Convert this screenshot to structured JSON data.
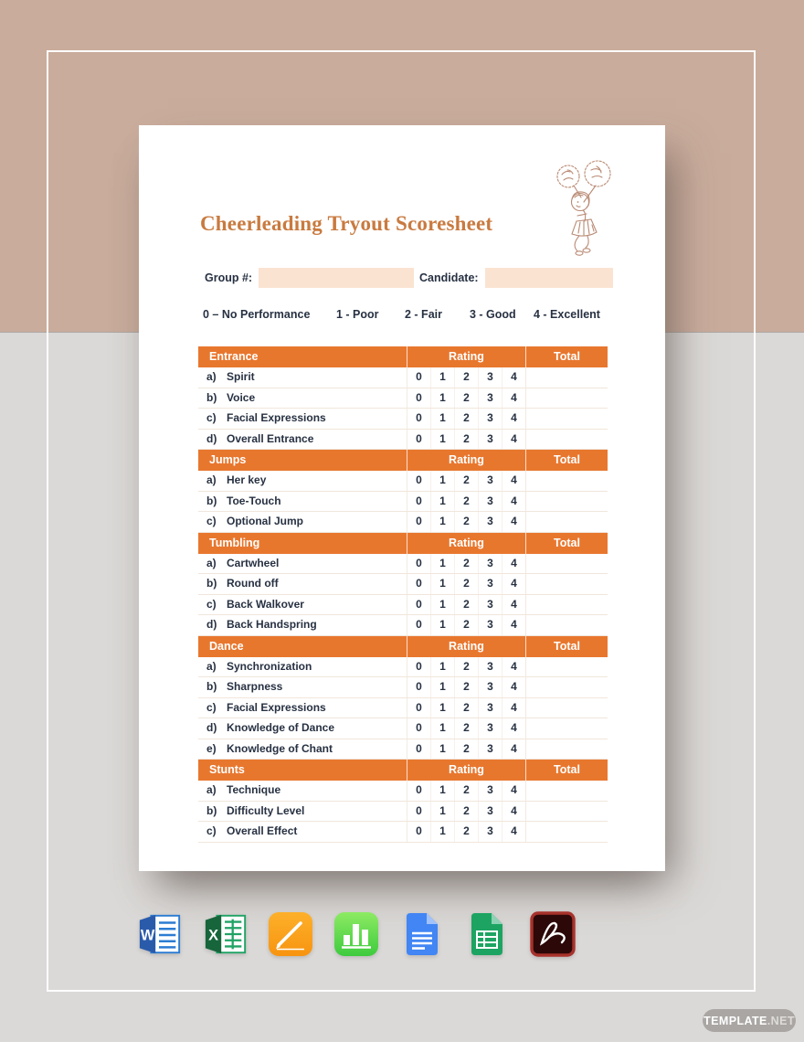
{
  "document": {
    "title": "Cheerleading Tryout Scoresheet",
    "fields": [
      {
        "label": "Group #:",
        "value": ""
      },
      {
        "label": "Candidate:",
        "value": ""
      }
    ],
    "legend": [
      "0 – No Performance",
      "1 - Poor",
      "2 - Fair",
      "3 - Good",
      "4 - Excellent"
    ],
    "table": {
      "rating_header": "Rating",
      "total_header": "Total",
      "rating_scale": [
        "0",
        "1",
        "2",
        "3",
        "4"
      ],
      "sections": [
        {
          "title": "Entrance",
          "items": [
            {
              "letter": "a)",
              "label": "Spirit"
            },
            {
              "letter": "b)",
              "label": "Voice"
            },
            {
              "letter": "c)",
              "label": "Facial Expressions"
            },
            {
              "letter": "d)",
              "label": "Overall Entrance"
            }
          ]
        },
        {
          "title": "Jumps",
          "items": [
            {
              "letter": "a)",
              "label": "Her key"
            },
            {
              "letter": "b)",
              "label": "Toe-Touch"
            },
            {
              "letter": "c)",
              "label": "Optional Jump"
            }
          ]
        },
        {
          "title": "Tumbling",
          "items": [
            {
              "letter": "a)",
              "label": "Cartwheel"
            },
            {
              "letter": "b)",
              "label": "Round off"
            },
            {
              "letter": "c)",
              "label": "Back Walkover"
            },
            {
              "letter": "d)",
              "label": "Back Handspring"
            }
          ]
        },
        {
          "title": "Dance",
          "items": [
            {
              "letter": "a)",
              "label": "Synchronization"
            },
            {
              "letter": "b)",
              "label": "Sharpness"
            },
            {
              "letter": "c)",
              "label": "Facial Expressions"
            },
            {
              "letter": "d)",
              "label": "Knowledge of Dance"
            },
            {
              "letter": "e)",
              "label": "Knowledge of Chant"
            }
          ]
        },
        {
          "title": "Stunts",
          "items": [
            {
              "letter": "a)",
              "label": "Technique"
            },
            {
              "letter": "b)",
              "label": "Difficulty Level"
            },
            {
              "letter": "c)",
              "label": "Overall Effect"
            }
          ]
        }
      ]
    }
  },
  "format_icons": [
    "Microsoft Word",
    "Microsoft Excel",
    "Apple Pages",
    "Apple Numbers",
    "Google Docs",
    "Google Sheets",
    "Adobe PDF"
  ],
  "watermark": {
    "bold": "TEMPLATE",
    "light": ".NET"
  },
  "colors": {
    "accent_orange": "#e8772e",
    "title_orange": "#c97a40",
    "field_peach": "#fbe3d2",
    "text_navy": "#273142",
    "background_top": "#c9ac9c",
    "background_bottom": "#dbd9d7",
    "watermark_gray": "#a9a6a3",
    "illustration_line": "#b98a74"
  }
}
